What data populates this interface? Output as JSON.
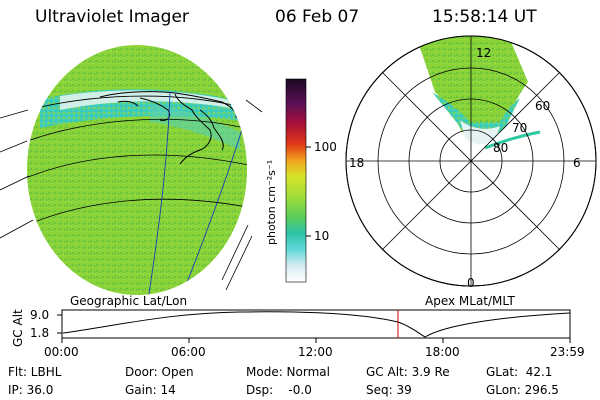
{
  "header": {
    "instrument": "Ultraviolet Imager",
    "date": "06 Feb 07",
    "time": "15:58:14 UT"
  },
  "colorbar": {
    "unit_label": "photon cm⁻²s⁻¹",
    "tick_100": "100",
    "tick_10": "10"
  },
  "polar": {
    "mlt_12": "12",
    "mlt_18": "18",
    "mlt_6": "6",
    "mlt_0": "0",
    "lat_60": "60",
    "lat_70": "70",
    "lat_80": "80"
  },
  "labels": {
    "geo": "Geographic Lat/Lon",
    "apex": "Apex  MLat/MLT"
  },
  "orbit": {
    "ylabel": "GC Alt",
    "tick_high": "9.0",
    "tick_low": "1.8",
    "times": [
      "00:00",
      "06:00",
      "12:00",
      "18:00",
      "23:59"
    ]
  },
  "footer": {
    "flt": "Flt: LBHL",
    "ip": "IP: 36.0",
    "door": "Door: Open",
    "gain": "Gain: 14",
    "mode": "Mode: Normal",
    "dsp": "Dsp:    -0.0",
    "gcalt": "GC Alt: 3.9 Re",
    "seq": "Seq: 39",
    "glat": "GLat:  42.1",
    "glon": "GLon: 296.5"
  },
  "colors": {
    "image_green": "#8ad43a",
    "aurora_cyan": "#3cd6c0",
    "orbit_marker": "#cc0000"
  }
}
